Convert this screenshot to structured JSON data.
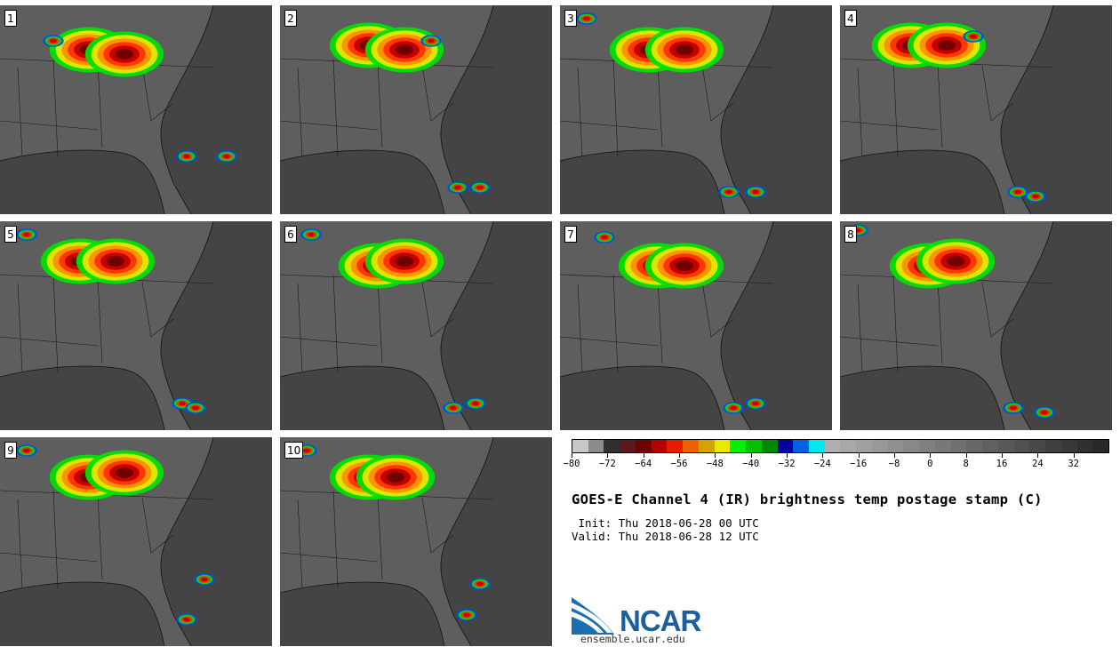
{
  "figure": {
    "title": "GOES-E Channel 4 (IR) brightness temp postage stamp (C)",
    "init": " Init: Thu 2018-06-28 00 UTC",
    "valid": "Valid: Thu 2018-06-28 12 UTC",
    "website": "ensemble.ucar.edu",
    "logo_text": "NCAR"
  },
  "panels": [
    {
      "label": "1"
    },
    {
      "label": "2"
    },
    {
      "label": "3"
    },
    {
      "label": "4"
    },
    {
      "label": "5"
    },
    {
      "label": "6"
    },
    {
      "label": "7"
    },
    {
      "label": "8"
    },
    {
      "label": "9"
    },
    {
      "label": "10"
    }
  ],
  "colorbar": {
    "range": [
      -80,
      40
    ],
    "tick_values": [
      -80,
      -72,
      -64,
      -56,
      -48,
      -40,
      -32,
      -24,
      -16,
      -8,
      0,
      8,
      16,
      24,
      32
    ],
    "tick_labels": [
      "−80",
      "−72",
      "−64",
      "−56",
      "−48",
      "−40",
      "−32",
      "−24",
      "−16",
      "−8",
      "0",
      "8",
      "16",
      "24",
      "32"
    ],
    "colors": [
      "#c8c8c8",
      "#8c8c8c",
      "#303030",
      "#5a1a1a",
      "#6e0000",
      "#b50000",
      "#e81a00",
      "#f06000",
      "#d8a000",
      "#e8e800",
      "#00f000",
      "#00c000",
      "#008800",
      "#0000a0",
      "#0060e8",
      "#00e8f0",
      "#b0b0b0",
      "#a8a8a8",
      "#a0a0a0",
      "#989898",
      "#909090",
      "#888888",
      "#808080",
      "#787878",
      "#707070",
      "#686868",
      "#606060",
      "#585858",
      "#505050",
      "#484848",
      "#404040",
      "#383838",
      "#303030",
      "#282828"
    ]
  },
  "map": {
    "land_color": "#5e5e5e",
    "water_color": "#444444",
    "cold_colors": [
      "#6e0000",
      "#c00000",
      "#ff3000",
      "#ff9000",
      "#e8e800",
      "#00e000",
      "#0050e0",
      "#00e8f0"
    ]
  }
}
